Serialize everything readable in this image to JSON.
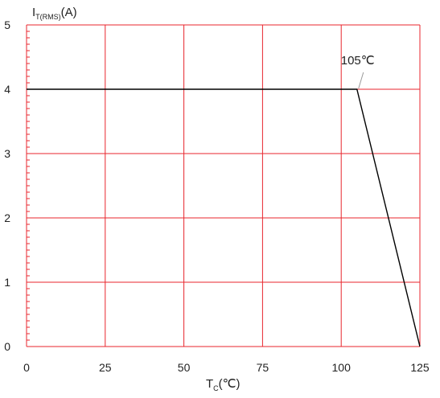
{
  "chart_data": {
    "type": "line",
    "title": "",
    "ylabel": {
      "main": "I",
      "sub": "T(RMS)",
      "suffix": "(A)"
    },
    "xlabel": {
      "main": "T",
      "sub": "C",
      "suffix": "(℃)"
    },
    "xlim": [
      0,
      125
    ],
    "ylim": [
      0,
      5
    ],
    "x_ticks": [
      0,
      25,
      50,
      75,
      100,
      125
    ],
    "y_ticks": [
      0,
      1,
      2,
      3,
      4,
      5
    ],
    "x_tick_labels": [
      "0",
      "25",
      "50",
      "75",
      "100",
      "125"
    ],
    "y_tick_labels": [
      "0",
      "1",
      "2",
      "3",
      "4",
      "5"
    ],
    "grid": true,
    "grid_color": "#e8262d",
    "line_color": "#000000",
    "series": [
      {
        "x": [
          0,
          105,
          125
        ],
        "y": [
          4,
          4,
          0
        ]
      }
    ],
    "annotations": [
      {
        "text": "105℃",
        "x": 105,
        "y": 4
      }
    ]
  }
}
